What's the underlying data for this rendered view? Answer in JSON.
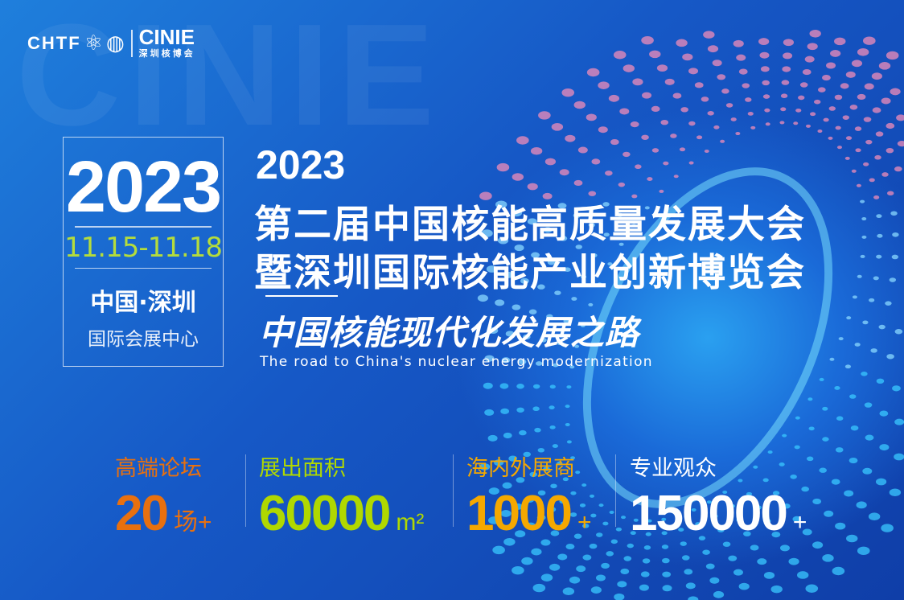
{
  "logo": {
    "chtf": "CHTF",
    "cinie": "CINIE",
    "cinie_cn": "深圳核博会"
  },
  "watermark": "CINIE",
  "info_box": {
    "year": "2023",
    "dates": "11.15-11.18",
    "city": "中国·深圳",
    "venue": "国际会展中心"
  },
  "title": {
    "year": "2023",
    "line1": "第二届中国核能高质量发展大会",
    "line2": "暨深圳国际核能产业创新博览会",
    "subtitle": "中国核能现代化发展之路",
    "subtitle_en": "The road  to China's nuclear energy modernization"
  },
  "stats": [
    {
      "label": "高端论坛",
      "value": "20",
      "unit": "场+",
      "color": "#e8700f"
    },
    {
      "label": "展出面积",
      "value": "60000",
      "unit": "m²",
      "color": "#b0d800"
    },
    {
      "label": "海内外展商",
      "value": "1000",
      "unit": "+",
      "color": "#f5a800"
    },
    {
      "label": "专业观众",
      "value": "150000",
      "unit": "+",
      "color": "#ffffff"
    }
  ]
}
